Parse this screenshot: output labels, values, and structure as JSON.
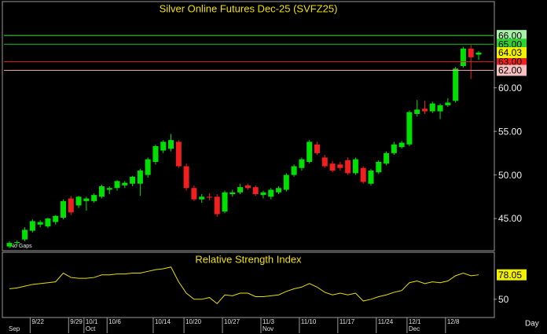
{
  "chart_data": [
    {
      "type": "candlestick",
      "title": "Silver Online Futures Dec-25 (SVFZ25)",
      "annotation": "No Gaps",
      "x_label": "Day",
      "categories": [
        null,
        null,
        null,
        "9/22",
        null,
        null,
        null,
        null,
        "9/29",
        null,
        "10/1",
        null,
        null,
        "10/6",
        null,
        null,
        null,
        null,
        null,
        "10/14",
        null,
        null,
        null,
        "10/20",
        null,
        null,
        null,
        null,
        "10/27",
        null,
        null,
        null,
        null,
        "11/3",
        null,
        null,
        null,
        null,
        "11/10",
        null,
        null,
        null,
        null,
        "11/17",
        null,
        null,
        null,
        null,
        "11/24",
        null,
        null,
        null,
        "12/1",
        null,
        null,
        null,
        null,
        "12/8",
        null,
        null,
        null,
        null
      ],
      "months": [
        "Sep",
        null,
        null,
        null,
        null,
        null,
        null,
        null,
        null,
        null,
        "Oct",
        null,
        null,
        null,
        null,
        null,
        null,
        null,
        null,
        null,
        null,
        null,
        null,
        null,
        null,
        null,
        null,
        null,
        null,
        null,
        null,
        null,
        null,
        "Nov",
        null,
        null,
        null,
        null,
        null,
        null,
        null,
        null,
        null,
        null,
        null,
        null,
        null,
        null,
        null,
        null,
        null,
        null,
        "Dec",
        null,
        null,
        null,
        null,
        null,
        null,
        null,
        null,
        null
      ],
      "open": [
        41.8,
        42.2,
        42.6,
        43.6,
        44.3,
        44.1,
        44.6,
        45.1,
        47.3,
        46.5,
        47.0,
        47.0,
        47.5,
        48.3,
        48.5,
        48.8,
        49.0,
        49.0,
        50.0,
        51.5,
        52.8,
        53.0,
        53.8,
        51.0,
        48.5,
        47.2,
        47.5,
        47.5,
        45.8,
        47.8,
        48.0,
        48.8,
        48.6,
        47.7,
        47.5,
        48.0,
        48.3,
        50.0,
        50.8,
        51.5,
        53.5,
        52.0,
        51.3,
        51.2,
        51.7,
        50.2,
        50.8,
        49.0,
        50.3,
        51.3,
        52.5,
        53.2,
        53.5,
        57.0,
        57.6,
        57.3,
        57.3,
        58.0,
        58.5,
        62.5,
        64.5,
        63.8
      ],
      "high": [
        42.4,
        42.5,
        44.0,
        44.9,
        44.8,
        45.1,
        45.4,
        47.2,
        47.6,
        47.6,
        47.5,
        47.9,
        48.9,
        48.7,
        49.4,
        49.3,
        49.9,
        50.7,
        52.0,
        53.5,
        54.0,
        54.7,
        54.0,
        51.3,
        48.8,
        47.8,
        47.9,
        47.8,
        48.2,
        48.3,
        49.0,
        49.0,
        48.8,
        48.2,
        48.5,
        48.7,
        50.2,
        51.2,
        52.0,
        54.0,
        53.8,
        52.3,
        51.6,
        51.5,
        52.0,
        52.0,
        51.0,
        50.7,
        51.7,
        52.7,
        53.8,
        53.9,
        57.4,
        58.6,
        58.5,
        58.4,
        58.2,
        58.8,
        62.4,
        64.7,
        64.9,
        64.2
      ],
      "low": [
        41.6,
        41.9,
        42.4,
        43.4,
        44.0,
        43.9,
        44.3,
        44.9,
        45.4,
        46.2,
        45.9,
        46.8,
        47.3,
        47.8,
        48.2,
        48.5,
        48.7,
        47.6,
        49.7,
        51.2,
        52.5,
        52.7,
        50.8,
        48.2,
        47.0,
        46.8,
        47.1,
        45.2,
        45.6,
        47.5,
        47.8,
        48.3,
        47.6,
        47.3,
        47.2,
        47.8,
        48.1,
        49.8,
        50.5,
        51.3,
        52.3,
        50.8,
        50.3,
        50.5,
        50.0,
        50.0,
        49.0,
        48.8,
        50.1,
        51.1,
        52.3,
        53.0,
        53.3,
        56.7,
        57.0,
        57.1,
        56.4,
        57.8,
        58.3,
        62.3,
        61.0,
        63.2
      ],
      "close": [
        42.2,
        42.3,
        43.7,
        44.7,
        44.6,
        45.0,
        45.3,
        47.0,
        45.7,
        47.5,
        47.3,
        47.7,
        48.7,
        48.5,
        49.3,
        49.1,
        49.8,
        50.5,
        51.8,
        53.3,
        53.8,
        54.0,
        51.0,
        48.5,
        47.2,
        47.5,
        47.4,
        45.5,
        48.0,
        48.0,
        48.6,
        48.5,
        47.8,
        48.0,
        48.3,
        48.5,
        50.0,
        51.0,
        51.8,
        53.8,
        52.5,
        51.0,
        50.5,
        50.8,
        50.2,
        51.8,
        49.2,
        50.5,
        51.5,
        52.5,
        53.5,
        53.7,
        57.2,
        57.5,
        57.3,
        58.2,
        58.0,
        58.3,
        62.2,
        64.5,
        63.5,
        64.03
      ],
      "up_color": "#00e000",
      "down_color": "#f02020",
      "levels": [
        {
          "value": 66,
          "label": "66.00",
          "color": "#40e040",
          "label_bg": "#a8f0a8"
        },
        {
          "value": 65,
          "label": "65.00",
          "color": "#20c020",
          "label_bg": "#30d030"
        },
        {
          "value": 63,
          "label": "63.00",
          "color": "#e02020",
          "label_bg": "#f02020"
        },
        {
          "value": 62,
          "label": "62.00",
          "color": "#f0a0a0",
          "label_bg": "#f8c0c0"
        }
      ],
      "last_bg": "#f0f000",
      "ylim": [
        41.4,
        69.8
      ],
      "yticks": [
        {
          "value": 45,
          "label": "45.00"
        },
        {
          "value": 50,
          "label": "50.00"
        },
        {
          "value": 55,
          "label": "55.00"
        },
        {
          "value": 60,
          "label": "60.00"
        }
      ]
    },
    {
      "type": "line",
      "title": "Relative Strength Index",
      "color": "#e8e000",
      "values": [
        62,
        63,
        65,
        67,
        68,
        69,
        70,
        80,
        75,
        74,
        74,
        75,
        78,
        78,
        79,
        79,
        80,
        80,
        82,
        84,
        85,
        87,
        70,
        57,
        50,
        50,
        52,
        45,
        55,
        54,
        57,
        57,
        53,
        53,
        54,
        55,
        59,
        62,
        64,
        68,
        64,
        58,
        55,
        57,
        55,
        57,
        48,
        50,
        53,
        55,
        58,
        60,
        69,
        71,
        68,
        70,
        69,
        71,
        77,
        80,
        77,
        78.05
      ],
      "last_bg": "#f0f000",
      "ylim": [
        30,
        103
      ],
      "yticks": [
        50
      ]
    }
  ]
}
